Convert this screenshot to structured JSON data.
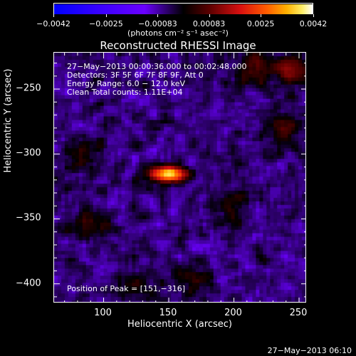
{
  "colorbar": {
    "ticks": [
      {
        "label": "−0.0042",
        "value": -0.0042
      },
      {
        "label": "−0.0025",
        "value": -0.0025
      },
      {
        "label": "−0.00083",
        "value": -0.00083
      },
      {
        "label": "0.00083",
        "value": 0.00083
      },
      {
        "label": "0.0025",
        "value": 0.0025
      },
      {
        "label": "0.0042",
        "value": 0.0042
      }
    ],
    "units": "(photons cm⁻² s⁻¹ asec⁻²)",
    "min": -0.0042,
    "max": 0.0042
  },
  "chart_data": {
    "type": "heatmap",
    "title": "Reconstructed RHESSI Image",
    "xlabel": "Heliocentric X (arcsec)",
    "ylabel": "Heliocentric Y (arcsec)",
    "xlim": [
      62,
      256
    ],
    "ylim": [
      -415,
      -222
    ],
    "xticks": [
      100,
      150,
      200,
      250
    ],
    "yticks": [
      -250,
      -300,
      -350,
      -400
    ],
    "peak": {
      "x": 151,
      "y": -316
    },
    "annotations": [
      "27−May−2013 00:00:36.000 to 00:02:48.000",
      "Detectors: 3F 5F 6F 7F 8F 9F, Att 0",
      "Energy Range: 6.0 − 12.0 keV",
      "Clean     Total counts: 1.11E+04"
    ],
    "peak_label": "Position of Peak = [151,−316]",
    "sources": [
      {
        "x": 151,
        "y": -316,
        "peak": 0.0042
      },
      {
        "x": 245,
        "y": -236,
        "peak": 0.0018
      },
      {
        "x": 215,
        "y": -232,
        "peak": 0.0013
      },
      {
        "x": 240,
        "y": -280,
        "peak": 0.0012
      },
      {
        "x": 85,
        "y": -300,
        "peak": 0.001
      },
      {
        "x": 90,
        "y": -355,
        "peak": 0.0011
      },
      {
        "x": 170,
        "y": -395,
        "peak": 0.001
      },
      {
        "x": 200,
        "y": -340,
        "peak": 0.0008
      },
      {
        "x": 125,
        "y": -405,
        "peak": 0.0007
      }
    ]
  },
  "footer": {
    "timestamp": "27−May−2013 06:10"
  }
}
